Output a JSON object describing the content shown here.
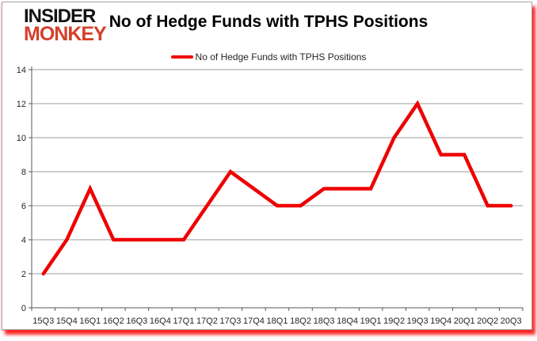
{
  "logo": {
    "line1": "INSIDER",
    "line2": "MONKEY"
  },
  "header": {
    "title": "No of Hedge Funds with TPHS Positions"
  },
  "legend": {
    "label": "No of Hedge Funds with TPHS Positions"
  },
  "colors": {
    "series_red": "#ee0202",
    "logo_red": "#d6402c",
    "grid": "#9b9b9b",
    "axis": "#595959",
    "tick_text": "#262626",
    "shadow_red": "#f80000"
  },
  "chart_data": {
    "type": "line",
    "title": "No of Hedge Funds with TPHS Positions",
    "categories": [
      "15Q3",
      "15Q4",
      "16Q1",
      "16Q2",
      "16Q3",
      "16Q4",
      "17Q1",
      "17Q2",
      "17Q3",
      "17Q4",
      "18Q1",
      "18Q2",
      "18Q3",
      "18Q4",
      "19Q1",
      "19Q2",
      "19Q3",
      "19Q4",
      "20Q1",
      "20Q2",
      "20Q3"
    ],
    "series": [
      {
        "name": "No of Hedge Funds with TPHS Positions",
        "color": "#ee0202",
        "values": [
          2,
          4,
          7,
          4,
          4,
          4,
          4,
          6,
          8,
          7,
          6,
          6,
          7,
          7,
          7,
          10,
          12,
          9,
          9,
          6,
          6
        ]
      }
    ],
    "xlabel": "",
    "ylabel": "",
    "ylim": [
      0,
      14
    ],
    "yticks": [
      0,
      2,
      4,
      6,
      8,
      10,
      12,
      14
    ],
    "grid": true,
    "legend_position": "top-center"
  }
}
